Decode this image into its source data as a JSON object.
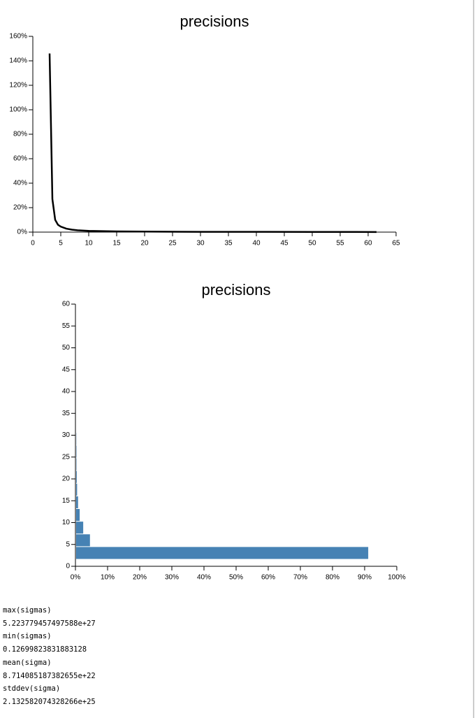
{
  "chart_data": [
    {
      "type": "line",
      "title": "precisions",
      "x": [
        3,
        3.5,
        4,
        4.5,
        5,
        6,
        7,
        8,
        10,
        15,
        20,
        30,
        40,
        50,
        61.5
      ],
      "values": [
        146,
        27,
        10,
        6,
        4.5,
        2.8,
        2,
        1.5,
        1,
        0.6,
        0.4,
        0.25,
        0.2,
        0.15,
        0.1
      ],
      "color": "#000000",
      "xlim": [
        0,
        65
      ],
      "xticks": [
        0,
        5,
        10,
        15,
        20,
        25,
        30,
        35,
        40,
        45,
        50,
        55,
        60,
        65
      ],
      "ylim": [
        0,
        160
      ],
      "yticks": [
        {
          "value": 0,
          "label": "0%"
        },
        {
          "value": 20,
          "label": "20%"
        },
        {
          "value": 40,
          "label": "40%"
        },
        {
          "value": 60,
          "label": "60%"
        },
        {
          "value": 80,
          "label": "80%"
        },
        {
          "value": 100,
          "label": "100%"
        },
        {
          "value": 120,
          "label": "120%"
        },
        {
          "value": 140,
          "label": "140%"
        },
        {
          "value": 160,
          "label": "160%"
        }
      ]
    },
    {
      "type": "histogram",
      "orientation": "horizontal",
      "title": "precisions",
      "bins": [
        1.6,
        4.5,
        7.4,
        10.3,
        13.2,
        16.1,
        19,
        21.9,
        24.8,
        27.7,
        30.6
      ],
      "values": [
        90.9,
        4.3,
        2.2,
        1.1,
        0.6,
        0.3,
        0.2,
        0.1,
        0.1,
        0.05
      ],
      "color": "#4682b4",
      "xlim": [
        0,
        100
      ],
      "xticks": [
        {
          "value": 0,
          "label": "0%"
        },
        {
          "value": 10,
          "label": "10%"
        },
        {
          "value": 20,
          "label": "20%"
        },
        {
          "value": 30,
          "label": "30%"
        },
        {
          "value": 40,
          "label": "40%"
        },
        {
          "value": 50,
          "label": "50%"
        },
        {
          "value": 60,
          "label": "60%"
        },
        {
          "value": 70,
          "label": "70%"
        },
        {
          "value": 80,
          "label": "80%"
        },
        {
          "value": 90,
          "label": "90%"
        },
        {
          "value": 100,
          "label": "100%"
        }
      ],
      "ylim": [
        0,
        60
      ],
      "yticks": [
        0,
        5,
        10,
        15,
        20,
        25,
        30,
        35,
        40,
        45,
        50,
        55,
        60
      ]
    }
  ],
  "stats": [
    {
      "label": "max(sigmas)",
      "value": "5.223779457497588e+27"
    },
    {
      "label": "min(sigmas)",
      "value": "0.12699823831883128"
    },
    {
      "label": "mean(sigma)",
      "value": "8.714085187382655e+22"
    },
    {
      "label": "stddev(sigma)",
      "value": "2.132582074328266e+25"
    }
  ]
}
